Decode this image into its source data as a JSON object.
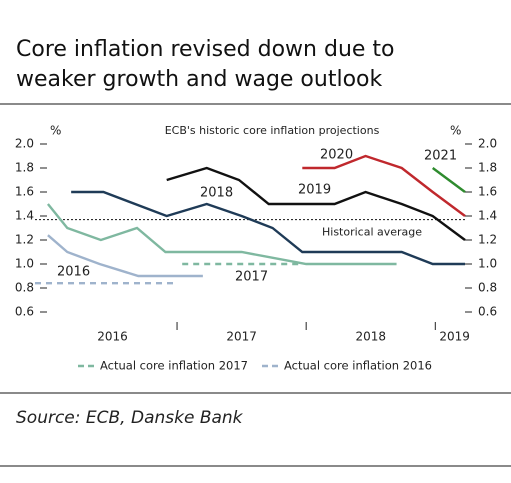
{
  "chart_data": {
    "type": "line",
    "title": [
      "Core inflation revised down due to",
      "weaker growth and wage outlook"
    ],
    "subtitle": "ECB's historic core inflation projections",
    "y_unit": "%",
    "y2_unit": "%",
    "source": "Source: ECB, Danske Bank",
    "xlim": [
      2015.9,
      2019.23
    ],
    "xticks": [
      {
        "value": 2016.5,
        "label": "2016"
      },
      {
        "value": 2017.5,
        "label": "2017"
      },
      {
        "value": 2018.5,
        "label": "2018"
      },
      {
        "value": 2019.15,
        "label": "2019"
      }
    ],
    "xminorticks": [
      2017,
      2018,
      2019
    ],
    "ylim": [
      0.6,
      2.0
    ],
    "yticks": [
      {
        "value": 2,
        "label": "2.0"
      },
      {
        "value": 1.8,
        "label": "1.8"
      },
      {
        "value": 1.6,
        "label": "1.6"
      },
      {
        "value": 1.4,
        "label": "1.4"
      },
      {
        "value": 1.2,
        "label": "1.2"
      },
      {
        "value": 1,
        "label": "1.0"
      },
      {
        "value": 0.8,
        "label": "0.8"
      },
      {
        "value": 0.6,
        "label": "0.6"
      }
    ],
    "y2lim": [
      0.6,
      2.0
    ],
    "y2ticks": [
      {
        "value": 2,
        "label": "2.0"
      },
      {
        "value": 1.8,
        "label": "1.8"
      },
      {
        "value": 1.6,
        "label": "1.6"
      },
      {
        "value": 1.4,
        "label": "1.4"
      },
      {
        "value": 1.2,
        "label": "1.2"
      },
      {
        "value": 1,
        "label": "1.0"
      },
      {
        "value": 0.8,
        "label": "0.8"
      },
      {
        "value": 0.6,
        "label": "0.6"
      }
    ],
    "series": [
      {
        "name": "2016",
        "color": "#9fb3cc",
        "x": [
          2016.0,
          2016.15,
          2016.4,
          2016.7,
          2017.2
        ],
        "values": [
          1.24,
          1.1,
          1.0,
          0.9,
          0.9
        ]
      },
      {
        "name": "2017",
        "color": "#7fb8a0",
        "x": [
          2016.0,
          2016.15,
          2016.41,
          2016.69,
          2016.91,
          2017.5,
          2018.0,
          2018.7
        ],
        "values": [
          1.5,
          1.3,
          1.2,
          1.3,
          1.1,
          1.1,
          1.0,
          1.0
        ]
      },
      {
        "name": "2018",
        "color": "#1f3b57",
        "x": [
          2016.18,
          2016.43,
          2016.92,
          2017.23,
          2017.5,
          2017.74,
          2017.97,
          2018.74,
          2018.98,
          2019.23
        ],
        "values": [
          1.6,
          1.6,
          1.4,
          1.5,
          1.4,
          1.3,
          1.1,
          1.1,
          1.0,
          1.0
        ]
      },
      {
        "name": "2019",
        "color": "#111111",
        "x": [
          2016.92,
          2017.23,
          2017.48,
          2017.71,
          2018.22,
          2018.46,
          2018.74,
          2018.98,
          2019.23
        ],
        "values": [
          1.7,
          1.8,
          1.7,
          1.5,
          1.5,
          1.6,
          1.5,
          1.4,
          1.2
        ]
      },
      {
        "name": "2020",
        "color": "#c0282d",
        "x": [
          2017.97,
          2018.22,
          2018.46,
          2018.74,
          2018.98,
          2019.23
        ],
        "values": [
          1.8,
          1.8,
          1.9,
          1.8,
          1.6,
          1.4
        ]
      },
      {
        "name": "2021",
        "color": "#2e8b2e",
        "x": [
          2018.98,
          2019.23
        ],
        "values": [
          1.8,
          1.6
        ]
      }
    ],
    "reference_lines": [
      {
        "name": "Actual core inflation 2017",
        "color": "#7fb8a0",
        "x": [
          2017.04,
          2017.97
        ],
        "values": [
          1.0,
          1.0
        ]
      },
      {
        "name": "Actual core inflation 2016",
        "color": "#9fb3cc",
        "x": [
          2015.9,
          2017.0
        ],
        "values": [
          0.84,
          0.84
        ]
      }
    ],
    "historical_average": {
      "label": "Historical average",
      "value": 1.37
    }
  }
}
